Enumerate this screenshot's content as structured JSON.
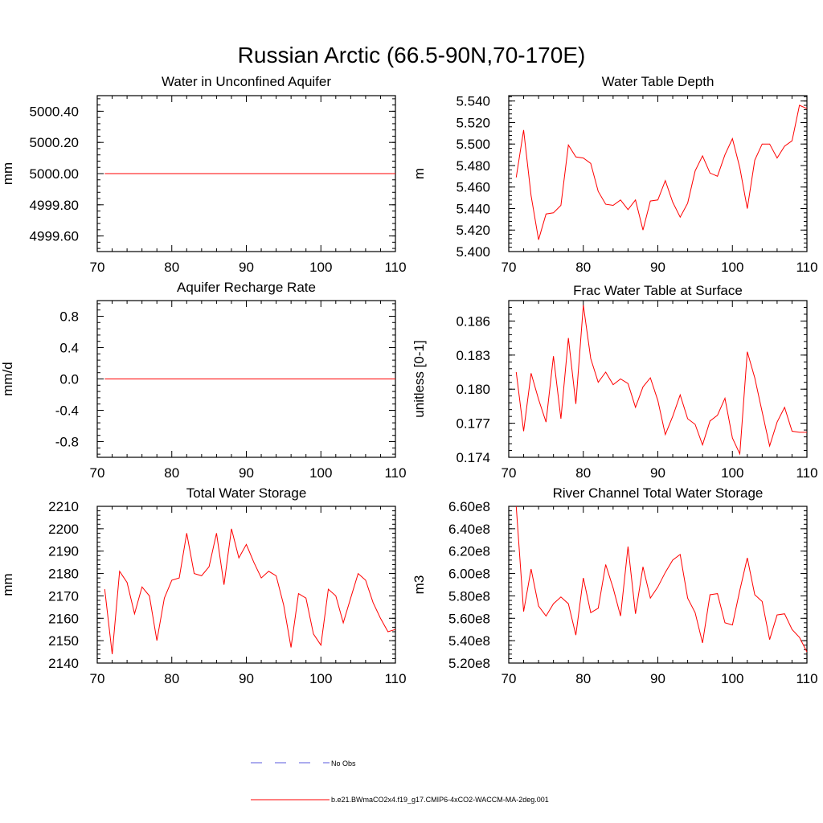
{
  "title": "Russian Arctic (66.5-90N,70-170E)",
  "colors": {
    "model": "#ff0000",
    "obs": "#5a5adc",
    "axis": "#000000"
  },
  "legend": {
    "obs_label": "No Obs",
    "model_label": "b.e21.BWmaCO2x4.f19_g17.CMIP6-4xCO2-WACCM-MA-2deg.001"
  },
  "chart_data": [
    {
      "type": "line",
      "title": "Water in Unconfined Aquifer",
      "ylabel": "mm",
      "xlim": [
        70,
        110
      ],
      "ylim": [
        4999.5,
        5000.5
      ],
      "xticks": [
        70,
        80,
        90,
        100,
        110
      ],
      "yticks": [
        4999.6,
        4999.8,
        5000.0,
        5000.2,
        5000.4
      ],
      "ytick_labels": [
        "4999.60",
        "4999.80",
        "5000.00",
        "5000.20",
        "5000.40"
      ],
      "x": [
        71,
        72,
        73,
        74,
        75,
        76,
        77,
        78,
        79,
        80,
        81,
        82,
        83,
        84,
        85,
        86,
        87,
        88,
        89,
        90,
        91,
        92,
        93,
        94,
        95,
        96,
        97,
        98,
        99,
        100,
        101,
        102,
        103,
        104,
        105,
        106,
        107,
        108,
        109,
        110
      ],
      "series": [
        {
          "values": [
            5000,
            5000,
            5000,
            5000,
            5000,
            5000,
            5000,
            5000,
            5000,
            5000,
            5000,
            5000,
            5000,
            5000,
            5000,
            5000,
            5000,
            5000,
            5000,
            5000,
            5000,
            5000,
            5000,
            5000,
            5000,
            5000,
            5000,
            5000,
            5000,
            5000,
            5000,
            5000,
            5000,
            5000,
            5000,
            5000,
            5000,
            5000,
            5000,
            5000
          ]
        }
      ]
    },
    {
      "type": "line",
      "title": "Water Table Depth",
      "ylabel": "m",
      "xlim": [
        70,
        110
      ],
      "ylim": [
        5.4,
        5.545
      ],
      "xticks": [
        70,
        80,
        90,
        100,
        110
      ],
      "yticks": [
        5.4,
        5.42,
        5.44,
        5.46,
        5.48,
        5.5,
        5.52,
        5.54
      ],
      "ytick_labels": [
        "5.400",
        "5.420",
        "5.440",
        "5.460",
        "5.480",
        "5.500",
        "5.520",
        "5.540"
      ],
      "x": [
        71,
        72,
        73,
        74,
        75,
        76,
        77,
        78,
        79,
        80,
        81,
        82,
        83,
        84,
        85,
        86,
        87,
        88,
        89,
        90,
        91,
        92,
        93,
        94,
        95,
        96,
        97,
        98,
        99,
        100,
        101,
        102,
        103,
        104,
        105,
        106,
        107,
        108,
        109,
        110
      ],
      "series": [
        {
          "values": [
            5.469,
            5.513,
            5.452,
            5.411,
            5.435,
            5.436,
            5.443,
            5.499,
            5.488,
            5.487,
            5.482,
            5.456,
            5.444,
            5.443,
            5.448,
            5.439,
            5.448,
            5.42,
            5.447,
            5.448,
            5.466,
            5.446,
            5.432,
            5.445,
            5.475,
            5.489,
            5.473,
            5.47,
            5.49,
            5.505,
            5.478,
            5.44,
            5.485,
            5.5,
            5.5,
            5.487,
            5.498,
            5.503,
            5.536,
            5.533
          ]
        }
      ]
    },
    {
      "type": "line",
      "title": "Aquifer Recharge Rate",
      "ylabel": "mm/d",
      "xlim": [
        70,
        110
      ],
      "ylim": [
        -1.0,
        1.0
      ],
      "xticks": [
        70,
        80,
        90,
        100,
        110
      ],
      "yticks": [
        -0.8,
        -0.4,
        0.0,
        0.4,
        0.8
      ],
      "ytick_labels": [
        "-0.8",
        "-0.4",
        "0.0",
        "0.4",
        "0.8"
      ],
      "x": [
        71,
        72,
        73,
        74,
        75,
        76,
        77,
        78,
        79,
        80,
        81,
        82,
        83,
        84,
        85,
        86,
        87,
        88,
        89,
        90,
        91,
        92,
        93,
        94,
        95,
        96,
        97,
        98,
        99,
        100,
        101,
        102,
        103,
        104,
        105,
        106,
        107,
        108,
        109,
        110
      ],
      "series": [
        {
          "values": [
            0,
            0,
            0,
            0,
            0,
            0,
            0,
            0,
            0,
            0,
            0,
            0,
            0,
            0,
            0,
            0,
            0,
            0,
            0,
            0,
            0,
            0,
            0,
            0,
            0,
            0,
            0,
            0,
            0,
            0,
            0,
            0,
            0,
            0,
            0,
            0,
            0,
            0,
            0,
            0
          ]
        }
      ]
    },
    {
      "type": "line",
      "title": "Frac Water Table at Surface",
      "ylabel": "unitless [0-1]",
      "xlim": [
        70,
        110
      ],
      "ylim": [
        0.174,
        0.1878
      ],
      "xticks": [
        70,
        80,
        90,
        100,
        110
      ],
      "yticks": [
        0.174,
        0.177,
        0.18,
        0.183,
        0.186
      ],
      "ytick_labels": [
        "0.174",
        "0.177",
        "0.180",
        "0.183",
        "0.186"
      ],
      "x": [
        71,
        72,
        73,
        74,
        75,
        76,
        77,
        78,
        79,
        80,
        81,
        82,
        83,
        84,
        85,
        86,
        87,
        88,
        89,
        90,
        91,
        92,
        93,
        94,
        95,
        96,
        97,
        98,
        99,
        100,
        101,
        102,
        103,
        104,
        105,
        106,
        107,
        108,
        109,
        110
      ],
      "series": [
        {
          "values": [
            0.1815,
            0.1763,
            0.1814,
            0.1791,
            0.1771,
            0.1829,
            0.1774,
            0.1845,
            0.1787,
            0.1874,
            0.1827,
            0.1806,
            0.1815,
            0.1804,
            0.1809,
            0.1805,
            0.1784,
            0.1802,
            0.181,
            0.179,
            0.176,
            0.1776,
            0.1795,
            0.1774,
            0.1769,
            0.1751,
            0.1772,
            0.1777,
            0.1792,
            0.1757,
            0.1743,
            0.1833,
            0.181,
            0.178,
            0.175,
            0.1771,
            0.1784,
            0.1763,
            0.1762,
            0.1762
          ]
        }
      ]
    },
    {
      "type": "line",
      "title": "Total Water Storage",
      "ylabel": "mm",
      "xlim": [
        70,
        110
      ],
      "ylim": [
        2140,
        2210
      ],
      "xticks": [
        70,
        80,
        90,
        100,
        110
      ],
      "yticks": [
        2140,
        2150,
        2160,
        2170,
        2180,
        2190,
        2200,
        2210
      ],
      "ytick_labels": [
        "2140",
        "2150",
        "2160",
        "2170",
        "2180",
        "2190",
        "2200",
        "2210"
      ],
      "x": [
        71,
        72,
        73,
        74,
        75,
        76,
        77,
        78,
        79,
        80,
        81,
        82,
        83,
        84,
        85,
        86,
        87,
        88,
        89,
        90,
        91,
        92,
        93,
        94,
        95,
        96,
        97,
        98,
        99,
        100,
        101,
        102,
        103,
        104,
        105,
        106,
        107,
        108,
        109,
        110
      ],
      "series": [
        {
          "values": [
            2173,
            2144,
            2181,
            2176,
            2162,
            2174,
            2170,
            2150,
            2169,
            2177,
            2178,
            2198,
            2180,
            2179,
            2183,
            2198,
            2175,
            2200,
            2187,
            2193,
            2185,
            2178,
            2181,
            2179,
            2166,
            2147,
            2171,
            2169,
            2153,
            2148,
            2173,
            2170,
            2158,
            2169,
            2180,
            2177,
            2167,
            2160,
            2154,
            2155
          ]
        }
      ]
    },
    {
      "type": "line",
      "title": "River Channel Total Water Storage",
      "ylabel": "m3",
      "xlim": [
        70,
        110
      ],
      "ylim": [
        520000000,
        660000000
      ],
      "xticks": [
        70,
        80,
        90,
        100,
        110
      ],
      "yticks": [
        520000000,
        540000000,
        560000000,
        580000000,
        600000000,
        620000000,
        640000000,
        660000000
      ],
      "ytick_labels": [
        "5.20e8",
        "5.40e8",
        "5.60e8",
        "5.80e8",
        "6.00e8",
        "6.20e8",
        "6.40e8",
        "6.60e8"
      ],
      "x": [
        71,
        72,
        73,
        74,
        75,
        76,
        77,
        78,
        79,
        80,
        81,
        82,
        83,
        84,
        85,
        86,
        87,
        88,
        89,
        90,
        91,
        92,
        93,
        94,
        95,
        96,
        97,
        98,
        99,
        100,
        101,
        102,
        103,
        104,
        105,
        106,
        107,
        108,
        109,
        110
      ],
      "series": [
        {
          "values": [
            660000000,
            566000000,
            604000000,
            571000000,
            562000000,
            573000000,
            579000000,
            573000000,
            545000000,
            596000000,
            565000000,
            569000000,
            608000000,
            587000000,
            562000000,
            624000000,
            564000000,
            606000000,
            578000000,
            588000000,
            601000000,
            612000000,
            617000000,
            578000000,
            565000000,
            538000000,
            581000000,
            582000000,
            556000000,
            554000000,
            585000000,
            614000000,
            581000000,
            575000000,
            541000000,
            563000000,
            564000000,
            550000000,
            543000000,
            530000000
          ]
        }
      ]
    }
  ]
}
